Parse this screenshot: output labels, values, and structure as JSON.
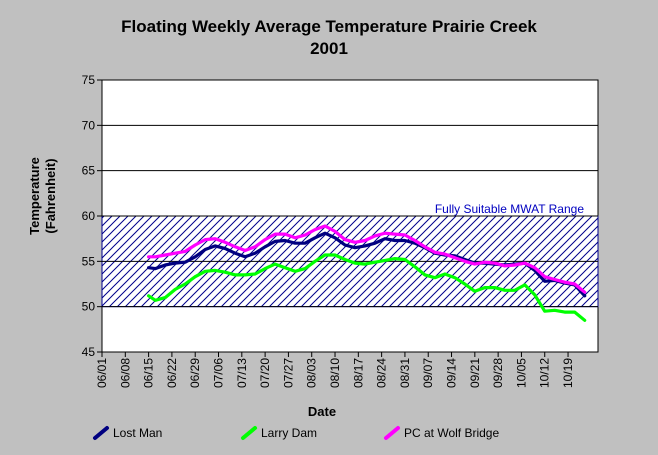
{
  "chart_data": {
    "type": "line",
    "title": "Floating Weekly Average Temperature Prairie Creek",
    "subtitle": "2001",
    "xlabel": "Date",
    "ylabel": "Temperature",
    "ylabel_unit": "(Fahrenheit)",
    "ylim": [
      45,
      75
    ],
    "yticks": [
      45,
      50,
      55,
      60,
      65,
      70,
      75
    ],
    "xlim": [
      "2001-06-01",
      "2001-10-28"
    ],
    "xticks": [
      "06/01",
      "06/08",
      "06/15",
      "06/22",
      "06/29",
      "07/06",
      "07/13",
      "07/20",
      "07/27",
      "08/03",
      "08/10",
      "08/17",
      "08/24",
      "08/31",
      "09/07",
      "09/14",
      "09/21",
      "09/28",
      "10/05",
      "10/12",
      "10/19"
    ],
    "grid": "horizontal",
    "range_band": {
      "label": "Fully Suitable MWAT Range",
      "low": 50,
      "high": 60,
      "color": "#00008b"
    },
    "series": [
      {
        "name": "Lost Man",
        "color": "#000080",
        "points": [
          [
            "2001-06-15",
            54.3
          ],
          [
            "2001-06-17",
            54.2
          ],
          [
            "2001-06-20",
            54.6
          ],
          [
            "2001-06-23",
            54.8
          ],
          [
            "2001-06-26",
            54.9
          ],
          [
            "2001-06-29",
            55.5
          ],
          [
            "2001-07-02",
            56.3
          ],
          [
            "2001-07-05",
            56.7
          ],
          [
            "2001-07-08",
            56.4
          ],
          [
            "2001-07-11",
            55.9
          ],
          [
            "2001-07-14",
            55.5
          ],
          [
            "2001-07-17",
            55.9
          ],
          [
            "2001-07-20",
            56.6
          ],
          [
            "2001-07-23",
            57.2
          ],
          [
            "2001-07-26",
            57.3
          ],
          [
            "2001-07-29",
            57.0
          ],
          [
            "2001-08-01",
            57.0
          ],
          [
            "2001-08-04",
            57.6
          ],
          [
            "2001-08-07",
            58.1
          ],
          [
            "2001-08-10",
            57.6
          ],
          [
            "2001-08-13",
            56.8
          ],
          [
            "2001-08-16",
            56.5
          ],
          [
            "2001-08-19",
            56.7
          ],
          [
            "2001-08-22",
            57.0
          ],
          [
            "2001-08-25",
            57.5
          ],
          [
            "2001-08-28",
            57.3
          ],
          [
            "2001-08-31",
            57.3
          ],
          [
            "2001-09-03",
            57.0
          ],
          [
            "2001-09-06",
            56.5
          ],
          [
            "2001-09-09",
            55.9
          ],
          [
            "2001-09-12",
            55.7
          ],
          [
            "2001-09-15",
            55.6
          ],
          [
            "2001-09-18",
            55.2
          ],
          [
            "2001-09-21",
            54.8
          ],
          [
            "2001-09-24",
            54.8
          ],
          [
            "2001-09-27",
            54.7
          ],
          [
            "2001-09-30",
            54.6
          ],
          [
            "2001-10-03",
            54.7
          ],
          [
            "2001-10-06",
            54.8
          ],
          [
            "2001-10-09",
            54.0
          ],
          [
            "2001-10-12",
            52.8
          ],
          [
            "2001-10-15",
            52.9
          ],
          [
            "2001-10-18",
            52.6
          ],
          [
            "2001-10-21",
            52.4
          ],
          [
            "2001-10-24",
            51.2
          ]
        ]
      },
      {
        "name": "Larry Dam",
        "color": "#00ff00",
        "points": [
          [
            "2001-06-15",
            51.2
          ],
          [
            "2001-06-17",
            50.7
          ],
          [
            "2001-06-20",
            51.0
          ],
          [
            "2001-06-23",
            51.9
          ],
          [
            "2001-06-26",
            52.5
          ],
          [
            "2001-06-29",
            53.3
          ],
          [
            "2001-07-02",
            53.9
          ],
          [
            "2001-07-05",
            54.0
          ],
          [
            "2001-07-08",
            53.8
          ],
          [
            "2001-07-11",
            53.5
          ],
          [
            "2001-07-14",
            53.5
          ],
          [
            "2001-07-17",
            53.6
          ],
          [
            "2001-07-20",
            54.2
          ],
          [
            "2001-07-23",
            54.7
          ],
          [
            "2001-07-26",
            54.3
          ],
          [
            "2001-07-29",
            53.9
          ],
          [
            "2001-08-01",
            54.2
          ],
          [
            "2001-08-04",
            55.0
          ],
          [
            "2001-08-07",
            55.7
          ],
          [
            "2001-08-10",
            55.7
          ],
          [
            "2001-08-13",
            55.2
          ],
          [
            "2001-08-16",
            54.8
          ],
          [
            "2001-08-19",
            54.7
          ],
          [
            "2001-08-22",
            54.9
          ],
          [
            "2001-08-25",
            55.1
          ],
          [
            "2001-08-28",
            55.3
          ],
          [
            "2001-08-31",
            55.2
          ],
          [
            "2001-09-03",
            54.4
          ],
          [
            "2001-09-06",
            53.5
          ],
          [
            "2001-09-09",
            53.2
          ],
          [
            "2001-09-12",
            53.6
          ],
          [
            "2001-09-15",
            53.2
          ],
          [
            "2001-09-18",
            52.5
          ],
          [
            "2001-09-21",
            51.7
          ],
          [
            "2001-09-24",
            52.1
          ],
          [
            "2001-09-27",
            52.1
          ],
          [
            "2001-09-30",
            51.8
          ],
          [
            "2001-10-03",
            51.8
          ],
          [
            "2001-10-06",
            52.4
          ],
          [
            "2001-10-09",
            51.3
          ],
          [
            "2001-10-12",
            49.5
          ],
          [
            "2001-10-15",
            49.6
          ],
          [
            "2001-10-18",
            49.4
          ],
          [
            "2001-10-21",
            49.4
          ],
          [
            "2001-10-24",
            48.5
          ]
        ]
      },
      {
        "name": "PC at Wolf Bridge",
        "color": "#ff00ff",
        "points": [
          [
            "2001-06-15",
            55.5
          ],
          [
            "2001-06-17",
            55.5
          ],
          [
            "2001-06-20",
            55.7
          ],
          [
            "2001-06-23",
            55.9
          ],
          [
            "2001-06-26",
            56.1
          ],
          [
            "2001-06-29",
            56.8
          ],
          [
            "2001-07-02",
            57.4
          ],
          [
            "2001-07-05",
            57.5
          ],
          [
            "2001-07-08",
            57.1
          ],
          [
            "2001-07-11",
            56.6
          ],
          [
            "2001-07-14",
            56.2
          ],
          [
            "2001-07-17",
            56.6
          ],
          [
            "2001-07-20",
            57.4
          ],
          [
            "2001-07-23",
            58.0
          ],
          [
            "2001-07-26",
            58.0
          ],
          [
            "2001-07-29",
            57.6
          ],
          [
            "2001-08-01",
            57.9
          ],
          [
            "2001-08-04",
            58.5
          ],
          [
            "2001-08-07",
            58.9
          ],
          [
            "2001-08-10",
            58.3
          ],
          [
            "2001-08-13",
            57.4
          ],
          [
            "2001-08-16",
            57.1
          ],
          [
            "2001-08-19",
            57.3
          ],
          [
            "2001-08-22",
            57.8
          ],
          [
            "2001-08-25",
            58.1
          ],
          [
            "2001-08-28",
            58.0
          ],
          [
            "2001-08-31",
            57.9
          ],
          [
            "2001-09-03",
            57.3
          ],
          [
            "2001-09-06",
            56.6
          ],
          [
            "2001-09-09",
            56.0
          ],
          [
            "2001-09-12",
            55.8
          ],
          [
            "2001-09-15",
            55.4
          ],
          [
            "2001-09-18",
            55.0
          ],
          [
            "2001-09-21",
            54.7
          ],
          [
            "2001-09-24",
            54.9
          ],
          [
            "2001-09-27",
            54.8
          ],
          [
            "2001-09-30",
            54.5
          ],
          [
            "2001-10-03",
            54.6
          ],
          [
            "2001-10-06",
            54.8
          ],
          [
            "2001-10-09",
            54.3
          ],
          [
            "2001-10-12",
            53.3
          ],
          [
            "2001-10-15",
            53.0
          ],
          [
            "2001-10-18",
            52.7
          ],
          [
            "2001-10-21",
            52.5
          ],
          [
            "2001-10-24",
            51.6
          ]
        ]
      }
    ],
    "legend_position": "bottom"
  }
}
